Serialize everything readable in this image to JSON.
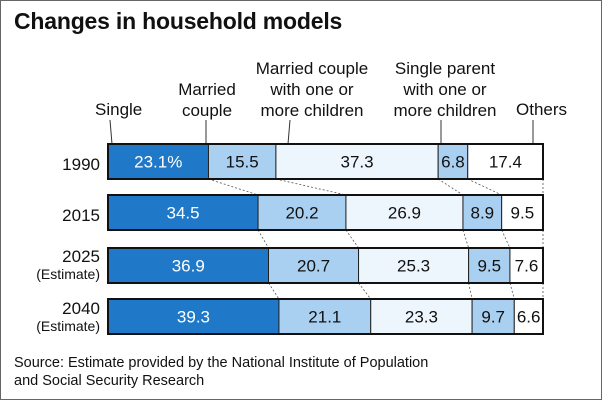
{
  "title": "Changes in household models",
  "categories": [
    {
      "label_lines": [
        "Single"
      ]
    },
    {
      "label_lines": [
        "Married",
        "couple"
      ]
    },
    {
      "label_lines": [
        "Married couple",
        "with one or",
        "more children"
      ]
    },
    {
      "label_lines": [
        "Single parent",
        "with one or",
        "more children"
      ]
    },
    {
      "label_lines": [
        "Others"
      ]
    }
  ],
  "rows": [
    {
      "year": "1990",
      "note": ""
    },
    {
      "year": "2015",
      "note": ""
    },
    {
      "year": "2025",
      "note": "(Estimate)"
    },
    {
      "year": "2040",
      "note": "(Estimate)"
    }
  ],
  "chart_data": {
    "type": "bar",
    "stacked": true,
    "orientation": "horizontal",
    "unit": "%",
    "categories": [
      "1990",
      "2015",
      "2025 (Estimate)",
      "2040 (Estimate)"
    ],
    "series": [
      {
        "name": "Single",
        "values": [
          23.1,
          34.5,
          36.9,
          39.3
        ],
        "labels": [
          "23.1%",
          "34.5",
          "36.9",
          "39.3"
        ],
        "color": "#1f78c8"
      },
      {
        "name": "Married couple",
        "values": [
          15.5,
          20.2,
          20.7,
          21.1
        ],
        "labels": [
          "15.5",
          "20.2",
          "20.7",
          "21.1"
        ],
        "color": "#a9d0f0"
      },
      {
        "name": "Married couple with one or more children",
        "values": [
          37.3,
          26.9,
          25.3,
          23.3
        ],
        "labels": [
          "37.3",
          "26.9",
          "25.3",
          "23.3"
        ],
        "color": "#eef6fd"
      },
      {
        "name": "Single parent with one or more children",
        "values": [
          6.8,
          8.9,
          9.5,
          9.7
        ],
        "labels": [
          "6.8",
          "8.9",
          "9.5",
          "9.7"
        ],
        "color": "#a9d0f0"
      },
      {
        "name": "Others",
        "values": [
          17.4,
          9.5,
          7.6,
          6.6
        ],
        "labels": [
          "17.4",
          "9.5",
          "7.6",
          "6.6"
        ],
        "color": "#ffffff"
      }
    ],
    "xlim": [
      0,
      100
    ]
  },
  "source": [
    "Source: Estimate provided by the National Institute of Population",
    "and Social Security Research"
  ]
}
